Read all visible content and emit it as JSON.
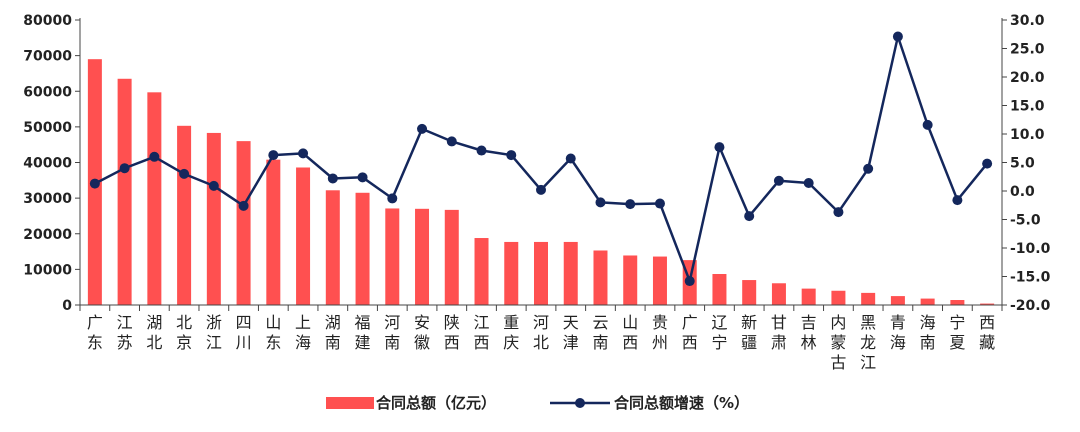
{
  "chart_data": {
    "type": "bar",
    "categories": [
      "广东",
      "江苏",
      "湖北",
      "北京",
      "浙江",
      "四川",
      "山东",
      "上海",
      "湖南",
      "福建",
      "河南",
      "安徽",
      "陕西",
      "江西",
      "重庆",
      "河北",
      "天津",
      "云南",
      "山西",
      "贵州",
      "广西",
      "辽宁",
      "新疆",
      "甘肃",
      "吉林",
      "内蒙古",
      "黑龙江",
      "青海",
      "海南",
      "宁夏",
      "西藏"
    ],
    "series": [
      {
        "name": "合同总额（亿元）",
        "type": "bar",
        "axis": "left",
        "color": "#ff5050",
        "values": [
          69000,
          63500,
          59700,
          50300,
          48300,
          46000,
          40800,
          38600,
          32200,
          31500,
          27100,
          27000,
          26700,
          18800,
          17700,
          17700,
          17700,
          15300,
          13900,
          13600,
          12600,
          8700,
          7000,
          6100,
          4600,
          4000,
          3400,
          2500,
          1800,
          1400,
          400
        ]
      },
      {
        "name": "合同总额增速（%）",
        "type": "line",
        "axis": "right",
        "color": "#14275c",
        "values": [
          1.3,
          4.0,
          6.0,
          3.0,
          0.9,
          -2.6,
          6.3,
          6.6,
          2.2,
          2.4,
          -1.3,
          10.9,
          8.7,
          7.1,
          6.3,
          0.2,
          5.7,
          -2.0,
          -2.3,
          -2.2,
          -15.8,
          7.7,
          -4.4,
          1.8,
          1.4,
          -3.7,
          3.9,
          27.1,
          11.6,
          -1.6,
          4.8
        ]
      }
    ],
    "y_left": {
      "min": 0,
      "max": 80000,
      "step": 10000,
      "ticks": [
        "0",
        "10000",
        "20000",
        "30000",
        "40000",
        "50000",
        "60000",
        "70000",
        "80000"
      ]
    },
    "y_right": {
      "min": -20,
      "max": 30,
      "step": 5,
      "ticks": [
        "-20.0",
        "-15.0",
        "-10.0",
        "-5.0",
        "0.0",
        "5.0",
        "10.0",
        "15.0",
        "20.0",
        "25.0",
        "30.0"
      ]
    },
    "grid": false,
    "legend_position": "bottom"
  },
  "legend": {
    "bar_label": "合同总额（亿元）",
    "line_label": "合同总额增速（%）"
  }
}
